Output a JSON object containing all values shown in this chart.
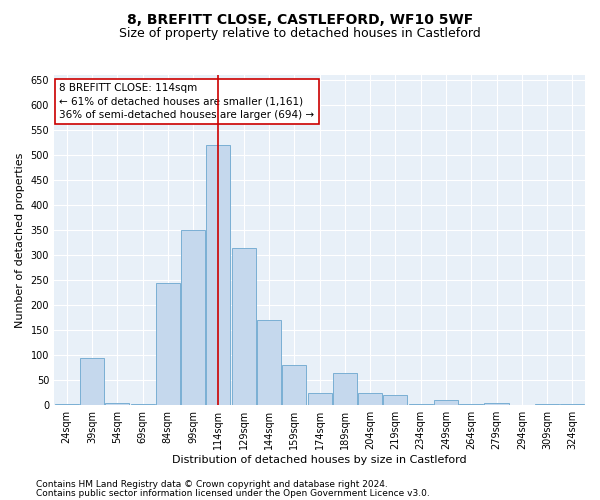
{
  "title": "8, BREFITT CLOSE, CASTLEFORD, WF10 5WF",
  "subtitle": "Size of property relative to detached houses in Castleford",
  "xlabel": "Distribution of detached houses by size in Castleford",
  "ylabel": "Number of detached properties",
  "footnote1": "Contains HM Land Registry data © Crown copyright and database right 2024.",
  "footnote2": "Contains public sector information licensed under the Open Government Licence v3.0.",
  "categories": [
    "24sqm",
    "39sqm",
    "54sqm",
    "69sqm",
    "84sqm",
    "99sqm",
    "114sqm",
    "129sqm",
    "144sqm",
    "159sqm",
    "174sqm",
    "189sqm",
    "204sqm",
    "219sqm",
    "234sqm",
    "249sqm",
    "264sqm",
    "279sqm",
    "294sqm",
    "309sqm",
    "324sqm"
  ],
  "values": [
    3,
    95,
    5,
    2,
    245,
    350,
    520,
    315,
    170,
    80,
    25,
    65,
    25,
    20,
    3,
    10,
    3,
    5,
    1,
    3,
    2
  ],
  "bar_color": "#c5d8ed",
  "bar_edge_color": "#7aafd4",
  "highlight_index": 6,
  "vline_x": 6,
  "vline_color": "#cc0000",
  "annotation_text": "8 BREFITT CLOSE: 114sqm\n← 61% of detached houses are smaller (1,161)\n36% of semi-detached houses are larger (694) →",
  "annotation_box_color": "white",
  "annotation_box_edge": "#cc0000",
  "ylim": [
    0,
    660
  ],
  "yticks": [
    0,
    50,
    100,
    150,
    200,
    250,
    300,
    350,
    400,
    450,
    500,
    550,
    600,
    650
  ],
  "background_color": "#e8f0f8",
  "grid_color": "white",
  "title_fontsize": 10,
  "subtitle_fontsize": 9,
  "axis_label_fontsize": 8,
  "tick_fontsize": 7,
  "footnote_fontsize": 6.5,
  "annotation_fontsize": 7.5
}
